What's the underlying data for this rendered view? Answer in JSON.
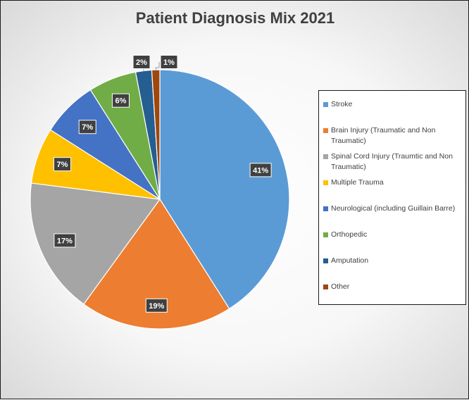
{
  "chart_data": {
    "type": "pie",
    "title": "Patient Diagnosis Mix 2021",
    "legend_position": "right",
    "slices": [
      {
        "name": "Stroke",
        "value": 41,
        "label": "41%",
        "color": "#5b9bd5"
      },
      {
        "name": "Brain Injury (Traumatic and Non Traumatic)",
        "value": 19,
        "label": "19%",
        "color": "#ed7d31"
      },
      {
        "name": "Spinal Cord Injury (Traumtic and Non Traumatic)",
        "value": 17,
        "label": "17%",
        "color": "#a5a5a5"
      },
      {
        "name": "Multiple Trauma",
        "value": 7,
        "label": "7%",
        "color": "#ffc000"
      },
      {
        "name": "Neurological (including Guillain Barre)",
        "value": 7,
        "label": "7%",
        "color": "#4472c4"
      },
      {
        "name": "Orthopedic",
        "value": 6,
        "label": "6%",
        "color": "#70ad47"
      },
      {
        "name": "Amputation",
        "value": 2,
        "label": "2%",
        "color": "#255e91"
      },
      {
        "name": "Other",
        "value": 1,
        "label": "1%",
        "color": "#9e480e"
      }
    ]
  }
}
